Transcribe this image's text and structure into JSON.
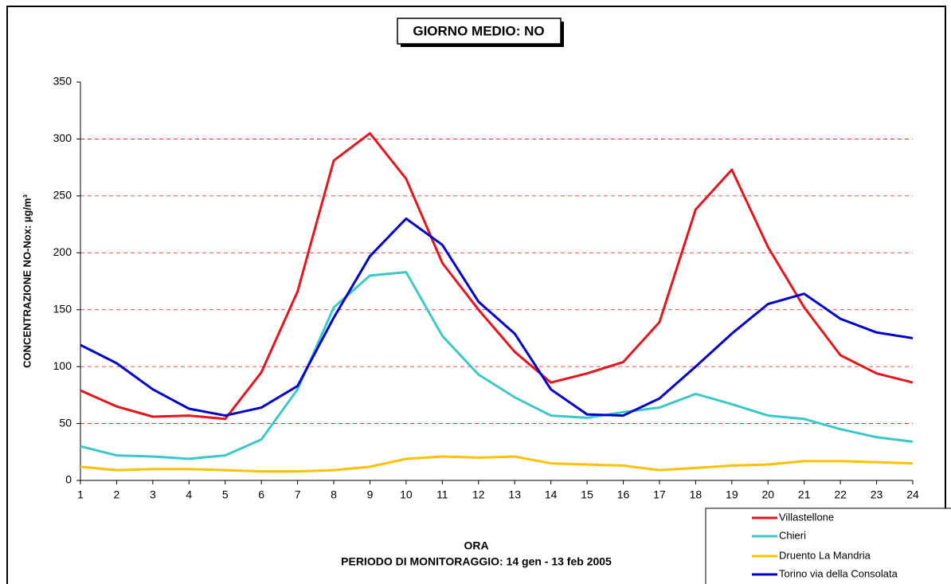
{
  "chart_data": {
    "type": "line",
    "title": "GIORNO MEDIO: NO",
    "y_label": "CONCENTRAZIONE NO-Nox: µg/m³",
    "x_label": "ORA",
    "subtitle": "PERIODO DI MONITORAGGIO: 14 gen - 13 feb 2005",
    "x": [
      1,
      2,
      3,
      4,
      5,
      6,
      7,
      8,
      9,
      10,
      11,
      12,
      13,
      14,
      15,
      16,
      17,
      18,
      19,
      20,
      21,
      22,
      23,
      24
    ],
    "xlim": [
      1,
      24
    ],
    "xticks": [
      1,
      2,
      3,
      4,
      5,
      6,
      7,
      8,
      9,
      10,
      11,
      12,
      13,
      14,
      15,
      16,
      17,
      18,
      19,
      20,
      21,
      22,
      23,
      24
    ],
    "ylim": [
      0,
      350
    ],
    "yticks": [
      0,
      50,
      100,
      150,
      200,
      250,
      300,
      350
    ],
    "grid": true,
    "legend": "bottom-right",
    "series": [
      {
        "name": "Villastellone",
        "color": "#e8141b",
        "values": [
          79,
          65,
          56,
          57,
          54,
          95,
          166,
          281,
          305,
          265,
          191,
          150,
          113,
          86,
          94,
          104,
          139,
          238,
          273,
          205,
          152,
          110,
          94,
          86
        ]
      },
      {
        "name": "Chieri",
        "color": "#3cc8c8",
        "values": [
          30,
          22,
          21,
          19,
          22,
          36,
          80,
          152,
          180,
          183,
          127,
          93,
          73,
          57,
          55,
          60,
          64,
          76,
          67,
          57,
          54,
          45,
          38,
          34
        ]
      },
      {
        "name": "Druento La Mandria",
        "color": "#ffc000",
        "values": [
          12,
          9,
          10,
          10,
          9,
          8,
          8,
          9,
          12,
          19,
          21,
          20,
          21,
          15,
          14,
          13,
          9,
          11,
          13,
          14,
          17,
          17,
          16,
          15
        ]
      },
      {
        "name": "Torino via della Consolata",
        "color": "#0000cc",
        "values": [
          119,
          103,
          80,
          63,
          57,
          64,
          83,
          143,
          197,
          230,
          207,
          157,
          129,
          80,
          58,
          57,
          72,
          100,
          129,
          155,
          164,
          142,
          130,
          125
        ]
      }
    ]
  }
}
